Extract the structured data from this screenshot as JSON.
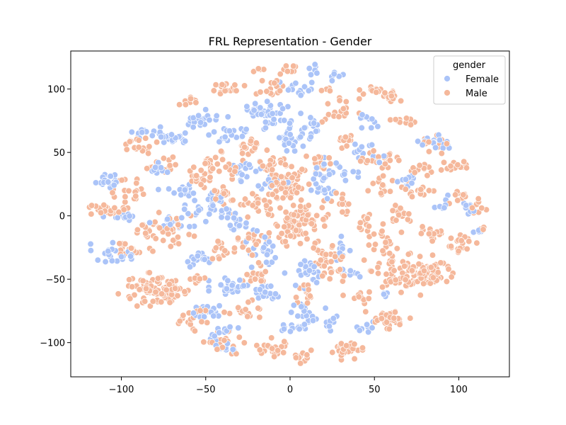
{
  "chart_data": {
    "type": "scatter",
    "title": "FRL Representation - Gender",
    "xlabel": "",
    "ylabel": "",
    "xlim": [
      -130,
      130
    ],
    "ylim": [
      -127,
      130
    ],
    "x_ticks": [
      -100,
      -50,
      0,
      50,
      100
    ],
    "y_ticks": [
      -100,
      -50,
      0,
      50,
      100
    ],
    "x_tick_labels": [
      "−100",
      "−50",
      "0",
      "50",
      "100"
    ],
    "y_tick_labels": [
      "−100",
      "−50",
      "0",
      "50",
      "100"
    ],
    "grid": false,
    "legend": {
      "title": "gender",
      "placement": "top-right",
      "entries": [
        "Female",
        "Male"
      ]
    },
    "colors": {
      "Female": "#abc4f8",
      "Male": "#f5b89b",
      "edge": "#ffffff"
    },
    "series": [
      {
        "name": "Female",
        "clusters": [
          {
            "x": -108,
            "y": 28,
            "sx": 4,
            "sy": 3,
            "n": 20
          },
          {
            "x": -100,
            "y": 0,
            "sx": 5,
            "sy": 2,
            "n": 16
          },
          {
            "x": -105,
            "y": -30,
            "sx": 6,
            "sy": 4,
            "n": 24
          },
          {
            "x": -85,
            "y": 65,
            "sx": 4,
            "sy": 3,
            "n": 14
          },
          {
            "x": -70,
            "y": 62,
            "sx": 6,
            "sy": 3,
            "n": 22
          },
          {
            "x": -80,
            "y": 38,
            "sx": 4,
            "sy": 2,
            "n": 10
          },
          {
            "x": -65,
            "y": 20,
            "sx": 6,
            "sy": 3,
            "n": 16
          },
          {
            "x": -70,
            "y": -5,
            "sx": 6,
            "sy": 3,
            "n": 16
          },
          {
            "x": -50,
            "y": 75,
            "sx": 6,
            "sy": 4,
            "n": 22
          },
          {
            "x": -35,
            "y": 65,
            "sx": 6,
            "sy": 3,
            "n": 18
          },
          {
            "x": -20,
            "y": 85,
            "sx": 5,
            "sy": 4,
            "n": 14
          },
          {
            "x": -10,
            "y": 80,
            "sx": 6,
            "sy": 5,
            "n": 24
          },
          {
            "x": -45,
            "y": 5,
            "sx": 8,
            "sy": 6,
            "n": 36
          },
          {
            "x": -30,
            "y": -5,
            "sx": 5,
            "sy": 4,
            "n": 16
          },
          {
            "x": -25,
            "y": 35,
            "sx": 6,
            "sy": 4,
            "n": 18
          },
          {
            "x": -10,
            "y": 25,
            "sx": 4,
            "sy": 4,
            "n": 12
          },
          {
            "x": -35,
            "y": -55,
            "sx": 6,
            "sy": 5,
            "n": 28
          },
          {
            "x": -48,
            "y": -75,
            "sx": 5,
            "sy": 3,
            "n": 18
          },
          {
            "x": -55,
            "y": -35,
            "sx": 6,
            "sy": 3,
            "n": 18
          },
          {
            "x": -40,
            "y": -90,
            "sx": 5,
            "sy": 5,
            "n": 18
          },
          {
            "x": -38,
            "y": -104,
            "sx": 4,
            "sy": 2,
            "n": 8
          },
          {
            "x": -12,
            "y": -60,
            "sx": 5,
            "sy": 4,
            "n": 22
          },
          {
            "x": -15,
            "y": -30,
            "sx": 5,
            "sy": 6,
            "n": 20
          },
          {
            "x": 0,
            "y": 62,
            "sx": 7,
            "sy": 6,
            "n": 34
          },
          {
            "x": 12,
            "y": 72,
            "sx": 4,
            "sy": 4,
            "n": 14
          },
          {
            "x": 5,
            "y": 100,
            "sx": 6,
            "sy": 3,
            "n": 16
          },
          {
            "x": 25,
            "y": 35,
            "sx": 7,
            "sy": 5,
            "n": 24
          },
          {
            "x": 20,
            "y": 20,
            "sx": 5,
            "sy": 3,
            "n": 12
          },
          {
            "x": 10,
            "y": -45,
            "sx": 6,
            "sy": 6,
            "n": 24
          },
          {
            "x": 10,
            "y": -78,
            "sx": 5,
            "sy": 5,
            "n": 22
          },
          {
            "x": 0,
            "y": -88,
            "sx": 4,
            "sy": 2,
            "n": 10
          },
          {
            "x": 25,
            "y": -85,
            "sx": 3,
            "sy": 3,
            "n": 8
          },
          {
            "x": 30,
            "y": -25,
            "sx": 3,
            "sy": 5,
            "n": 10
          },
          {
            "x": 35,
            "y": -45,
            "sx": 3,
            "sy": 2,
            "n": 8
          },
          {
            "x": 45,
            "y": 50,
            "sx": 5,
            "sy": 4,
            "n": 14
          },
          {
            "x": 45,
            "y": 75,
            "sx": 4,
            "sy": 3,
            "n": 10
          },
          {
            "x": 45,
            "y": -88,
            "sx": 3,
            "sy": 2,
            "n": 8
          },
          {
            "x": 57,
            "y": -63,
            "sx": 1,
            "sy": 1,
            "n": 4
          },
          {
            "x": 70,
            "y": 25,
            "sx": 4,
            "sy": 4,
            "n": 12
          },
          {
            "x": 82,
            "y": 60,
            "sx": 4,
            "sy": 3,
            "n": 10
          },
          {
            "x": 90,
            "y": 10,
            "sx": 3,
            "sy": 4,
            "n": 8
          },
          {
            "x": 112,
            "y": -12,
            "sx": 2,
            "sy": 1,
            "n": 4
          },
          {
            "x": 108,
            "y": 8,
            "sx": 3,
            "sy": 4,
            "n": 8
          },
          {
            "x": 90,
            "y": 55,
            "sx": 3,
            "sy": 3,
            "n": 6
          },
          {
            "x": 15,
            "y": 115,
            "sx": 2,
            "sy": 2,
            "n": 6
          },
          {
            "x": 28,
            "y": 111,
            "sx": 2,
            "sy": 2,
            "n": 6
          }
        ]
      },
      {
        "name": "Male",
        "clusters": [
          {
            "x": -115,
            "y": 5,
            "sx": 3,
            "sy": 2,
            "n": 10
          },
          {
            "x": -105,
            "y": 5,
            "sx": 4,
            "sy": 4,
            "n": 16
          },
          {
            "x": -95,
            "y": 20,
            "sx": 5,
            "sy": 5,
            "n": 20
          },
          {
            "x": -95,
            "y": -25,
            "sx": 5,
            "sy": 4,
            "n": 16
          },
          {
            "x": -90,
            "y": 55,
            "sx": 5,
            "sy": 3,
            "n": 18
          },
          {
            "x": -85,
            "y": -10,
            "sx": 4,
            "sy": 4,
            "n": 12
          },
          {
            "x": -82,
            "y": -58,
            "sx": 9,
            "sy": 6,
            "n": 70
          },
          {
            "x": -70,
            "y": -60,
            "sx": 6,
            "sy": 4,
            "n": 30
          },
          {
            "x": -75,
            "y": 40,
            "sx": 5,
            "sy": 4,
            "n": 14
          },
          {
            "x": -70,
            "y": -15,
            "sx": 6,
            "sy": 8,
            "n": 30
          },
          {
            "x": -60,
            "y": 90,
            "sx": 3,
            "sy": 2,
            "n": 10
          },
          {
            "x": -55,
            "y": 30,
            "sx": 5,
            "sy": 5,
            "n": 16
          },
          {
            "x": -58,
            "y": -82,
            "sx": 4,
            "sy": 4,
            "n": 18
          },
          {
            "x": -45,
            "y": 40,
            "sx": 6,
            "sy": 5,
            "n": 30
          },
          {
            "x": -38,
            "y": 100,
            "sx": 5,
            "sy": 3,
            "n": 18
          },
          {
            "x": -40,
            "y": 15,
            "sx": 5,
            "sy": 4,
            "n": 18
          },
          {
            "x": -35,
            "y": -25,
            "sx": 5,
            "sy": 4,
            "n": 16
          },
          {
            "x": -38,
            "y": -100,
            "sx": 6,
            "sy": 4,
            "n": 22
          },
          {
            "x": -28,
            "y": -75,
            "sx": 5,
            "sy": 4,
            "n": 16
          },
          {
            "x": -22,
            "y": -20,
            "sx": 5,
            "sy": 5,
            "n": 20
          },
          {
            "x": -25,
            "y": 55,
            "sx": 4,
            "sy": 4,
            "n": 14
          },
          {
            "x": -15,
            "y": 45,
            "sx": 6,
            "sy": 6,
            "n": 22
          },
          {
            "x": -20,
            "y": 10,
            "sx": 6,
            "sy": 5,
            "n": 22
          },
          {
            "x": -12,
            "y": 100,
            "sx": 4,
            "sy": 3,
            "n": 14
          },
          {
            "x": -18,
            "y": -45,
            "sx": 5,
            "sy": 4,
            "n": 16
          },
          {
            "x": -10,
            "y": -105,
            "sx": 5,
            "sy": 4,
            "n": 22
          },
          {
            "x": -2,
            "y": 25,
            "sx": 6,
            "sy": 7,
            "n": 70
          },
          {
            "x": 0,
            "y": 115,
            "sx": 3,
            "sy": 2,
            "n": 10
          },
          {
            "x": 0,
            "y": -15,
            "sx": 4,
            "sy": 4,
            "n": 16
          },
          {
            "x": 5,
            "y": -5,
            "sx": 9,
            "sy": 6,
            "n": 60
          },
          {
            "x": 15,
            "y": 40,
            "sx": 5,
            "sy": 4,
            "n": 14
          },
          {
            "x": 20,
            "y": -30,
            "sx": 5,
            "sy": 6,
            "n": 26
          },
          {
            "x": 10,
            "y": -60,
            "sx": 4,
            "sy": 4,
            "n": 14
          },
          {
            "x": 8,
            "y": -110,
            "sx": 3,
            "sy": 3,
            "n": 10
          },
          {
            "x": 30,
            "y": 85,
            "sx": 5,
            "sy": 5,
            "n": 18
          },
          {
            "x": 35,
            "y": 60,
            "sx": 4,
            "sy": 3,
            "n": 12
          },
          {
            "x": 30,
            "y": 10,
            "sx": 5,
            "sy": 4,
            "n": 14
          },
          {
            "x": 28,
            "y": -45,
            "sx": 4,
            "sy": 3,
            "n": 12
          },
          {
            "x": 32,
            "y": -107,
            "sx": 5,
            "sy": 3,
            "n": 26
          },
          {
            "x": 40,
            "y": -65,
            "sx": 4,
            "sy": 4,
            "n": 12
          },
          {
            "x": 45,
            "y": -5,
            "sx": 4,
            "sy": 4,
            "n": 12
          },
          {
            "x": 50,
            "y": 98,
            "sx": 4,
            "sy": 2,
            "n": 12
          },
          {
            "x": 55,
            "y": 25,
            "sx": 4,
            "sy": 4,
            "n": 14
          },
          {
            "x": 55,
            "y": 45,
            "sx": 6,
            "sy": 4,
            "n": 22
          },
          {
            "x": 55,
            "y": -20,
            "sx": 5,
            "sy": 5,
            "n": 18
          },
          {
            "x": 58,
            "y": -82,
            "sx": 6,
            "sy": 4,
            "n": 36
          },
          {
            "x": 65,
            "y": -45,
            "sx": 10,
            "sy": 7,
            "n": 60
          },
          {
            "x": 80,
            "y": -45,
            "sx": 8,
            "sy": 8,
            "n": 60
          },
          {
            "x": 60,
            "y": 95,
            "sx": 4,
            "sy": 3,
            "n": 14
          },
          {
            "x": 65,
            "y": 75,
            "sx": 4,
            "sy": 2,
            "n": 10
          },
          {
            "x": 65,
            "y": 0,
            "sx": 5,
            "sy": 4,
            "n": 16
          },
          {
            "x": 75,
            "y": 20,
            "sx": 5,
            "sy": 4,
            "n": 16
          },
          {
            "x": 80,
            "y": 35,
            "sx": 5,
            "sy": 3,
            "n": 14
          },
          {
            "x": 85,
            "y": 55,
            "sx": 5,
            "sy": 4,
            "n": 16
          },
          {
            "x": 85,
            "y": -15,
            "sx": 5,
            "sy": 4,
            "n": 16
          },
          {
            "x": 100,
            "y": -22,
            "sx": 6,
            "sy": 4,
            "n": 20
          },
          {
            "x": 100,
            "y": 40,
            "sx": 4,
            "sy": 3,
            "n": 14
          },
          {
            "x": 100,
            "y": 15,
            "sx": 3,
            "sy": 3,
            "n": 10
          },
          {
            "x": 112,
            "y": 5,
            "sx": 3,
            "sy": 4,
            "n": 8
          },
          {
            "x": 113,
            "y": -10,
            "sx": 2,
            "sy": 1,
            "n": 4
          },
          {
            "x": -55,
            "y": -50,
            "sx": 3,
            "sy": 2,
            "n": 8
          },
          {
            "x": -20,
            "y": 115,
            "sx": 2,
            "sy": 1,
            "n": 4
          },
          {
            "x": 22,
            "y": 100,
            "sx": 2,
            "sy": 1,
            "n": 4
          }
        ]
      }
    ]
  }
}
